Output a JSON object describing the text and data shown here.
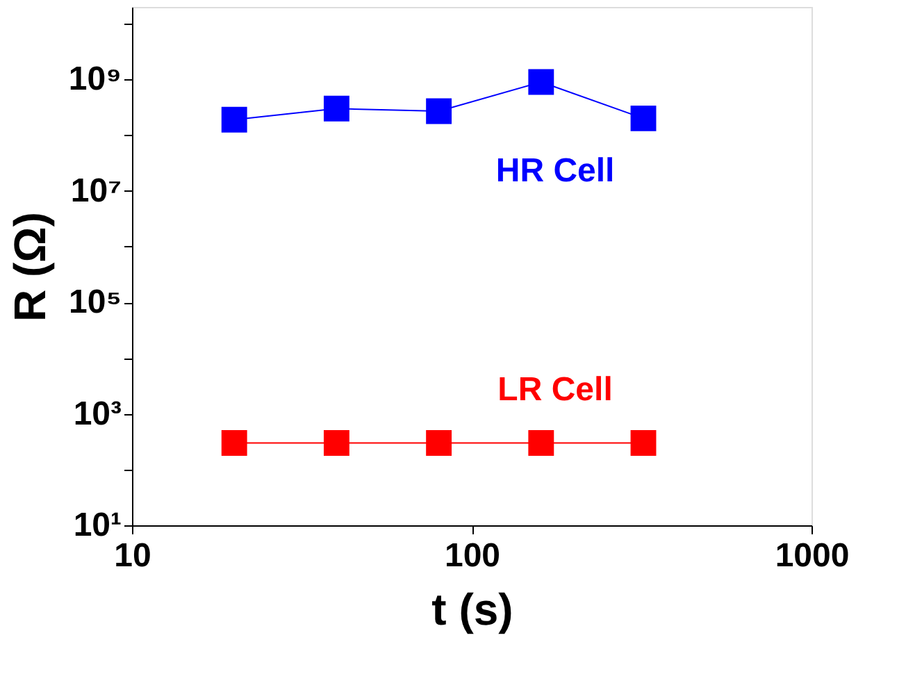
{
  "chart_data": {
    "type": "line",
    "xlabel": "t (s)",
    "ylabel": "R (Ω)",
    "log": "xy",
    "marker": "square",
    "line_style": "solid",
    "grid": false,
    "legend": false,
    "x": [
      20,
      40,
      80,
      160,
      320
    ],
    "series": [
      {
        "name": "HR Cell",
        "color": "#0000ff",
        "values": [
          190000000,
          300000000,
          270000000,
          900000000,
          200000000
        ]
      },
      {
        "name": "LR Cell",
        "color": "#ff0000",
        "values": [
          300,
          300,
          300,
          300,
          300
        ]
      }
    ],
    "xlim": [
      10,
      1000
    ],
    "xticks": [
      10,
      100,
      1000
    ],
    "ylim": [
      10,
      20000000000
    ],
    "yticks": [
      {
        "value": 10,
        "label": "10¹"
      },
      {
        "value": 100,
        "label": null
      },
      {
        "value": 1000,
        "label": "10³"
      },
      {
        "value": 10000,
        "label": null
      },
      {
        "value": 100000,
        "label": "10⁵"
      },
      {
        "value": 1000000,
        "label": null
      },
      {
        "value": 10000000,
        "label": "10⁷"
      },
      {
        "value": 100000000,
        "label": null
      },
      {
        "value": 1000000000,
        "label": "10⁹"
      },
      {
        "value": 10000000000,
        "label": null
      }
    ]
  }
}
